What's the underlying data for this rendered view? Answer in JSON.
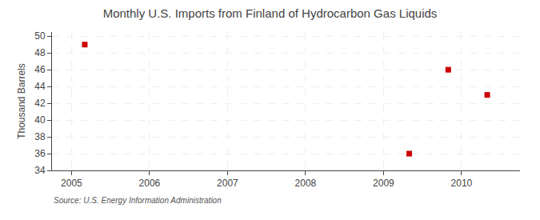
{
  "chart_data": {
    "type": "scatter",
    "title": "Monthly U.S. Imports from Finland of Hydrocarbon Gas Liquids",
    "ylabel": "Thousand Barrels",
    "annotation": "Source: U.S. Energy Information Administration",
    "x": [
      2005.17,
      2009.33,
      2009.83,
      2010.33
    ],
    "values": [
      49,
      36,
      46,
      43
    ],
    "color": "#cc0000",
    "marker": "square",
    "xlim": [
      2004.75,
      2010.75
    ],
    "ylim": [
      34,
      50.5
    ],
    "xticks": [
      2005,
      2006,
      2007,
      2008,
      2009,
      2010
    ],
    "yticks": [
      34,
      36,
      38,
      40,
      42,
      44,
      46,
      48,
      50
    ],
    "grid": true
  }
}
